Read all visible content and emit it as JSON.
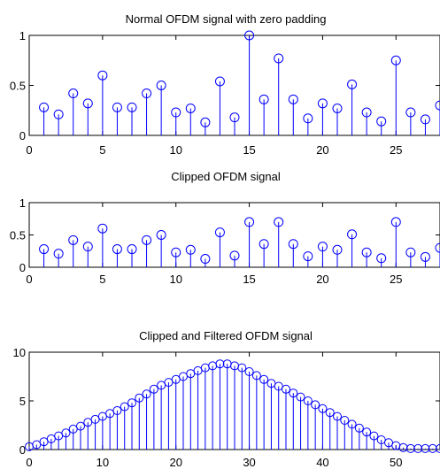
{
  "chart_data": [
    {
      "type": "stem",
      "title": "Normal OFDM signal with zero padding",
      "xlim": [
        0,
        28
      ],
      "ylim": [
        0,
        1
      ],
      "xticks": [
        0,
        5,
        10,
        15,
        20,
        25
      ],
      "yticks": [
        0,
        0.5,
        1
      ],
      "xticklabels": [
        "0",
        "5",
        "10",
        "15",
        "20",
        "25"
      ],
      "yticklabels": [
        "0",
        "0.5",
        "1"
      ],
      "x": [
        1,
        2,
        3,
        4,
        5,
        6,
        7,
        8,
        9,
        10,
        11,
        12,
        13,
        14,
        15,
        16,
        17,
        18,
        19,
        20,
        21,
        22,
        23,
        24,
        25,
        26,
        27,
        28
      ],
      "values": [
        0.28,
        0.21,
        0.42,
        0.32,
        0.6,
        0.28,
        0.28,
        0.42,
        0.5,
        0.23,
        0.27,
        0.13,
        0.54,
        0.18,
        1.0,
        0.36,
        0.77,
        0.36,
        0.17,
        0.32,
        0.27,
        0.51,
        0.23,
        0.14,
        0.75,
        0.23,
        0.16,
        0.3
      ],
      "color": "#0000ff"
    },
    {
      "type": "stem",
      "title": "Clipped OFDM signal",
      "xlim": [
        0,
        28
      ],
      "ylim": [
        0,
        1
      ],
      "xticks": [
        0,
        5,
        10,
        15,
        20,
        25
      ],
      "yticks": [
        0,
        0.5,
        1
      ],
      "xticklabels": [
        "0",
        "5",
        "10",
        "15",
        "20",
        "25"
      ],
      "yticklabels": [
        "0",
        "0.5",
        "1"
      ],
      "x": [
        1,
        2,
        3,
        4,
        5,
        6,
        7,
        8,
        9,
        10,
        11,
        12,
        13,
        14,
        15,
        16,
        17,
        18,
        19,
        20,
        21,
        22,
        23,
        24,
        25,
        26,
        27,
        28
      ],
      "values": [
        0.28,
        0.21,
        0.42,
        0.32,
        0.6,
        0.28,
        0.28,
        0.42,
        0.5,
        0.23,
        0.27,
        0.13,
        0.54,
        0.18,
        0.7,
        0.36,
        0.7,
        0.36,
        0.17,
        0.32,
        0.27,
        0.51,
        0.23,
        0.14,
        0.7,
        0.23,
        0.16,
        0.3
      ],
      "color": "#0000ff"
    },
    {
      "type": "stem",
      "title": "Clipped and Filtered OFDM signal",
      "xlim": [
        0,
        56
      ],
      "ylim": [
        0,
        10
      ],
      "xticks": [
        0,
        10,
        20,
        30,
        40,
        50
      ],
      "yticks": [
        0,
        5,
        10
      ],
      "xticklabels": [
        "0",
        "10",
        "20",
        "30",
        "40",
        "50"
      ],
      "yticklabels": [
        "0",
        "5",
        "10"
      ],
      "x": [
        0,
        1,
        2,
        3,
        4,
        5,
        6,
        7,
        8,
        9,
        10,
        11,
        12,
        13,
        14,
        15,
        16,
        17,
        18,
        19,
        20,
        21,
        22,
        23,
        24,
        25,
        26,
        27,
        28,
        29,
        30,
        31,
        32,
        33,
        34,
        35,
        36,
        37,
        38,
        39,
        40,
        41,
        42,
        43,
        44,
        45,
        46,
        47,
        48,
        49,
        50,
        51,
        52,
        53,
        54,
        55,
        56
      ],
      "values": [
        0.3,
        0.5,
        0.8,
        1.1,
        1.4,
        1.7,
        2.1,
        2.4,
        2.8,
        3.1,
        3.4,
        3.7,
        4.0,
        4.4,
        4.8,
        5.3,
        5.7,
        6.2,
        6.6,
        6.9,
        7.2,
        7.5,
        7.8,
        8.1,
        8.4,
        8.6,
        8.8,
        8.8,
        8.6,
        8.4,
        8.0,
        7.6,
        7.2,
        6.8,
        6.5,
        6.2,
        5.8,
        5.4,
        5.0,
        4.6,
        4.2,
        3.8,
        3.4,
        3.0,
        2.6,
        2.2,
        1.8,
        1.4,
        1.0,
        0.7,
        0.4,
        0.2,
        0.1,
        0.1,
        0.1,
        0.1,
        0.1
      ],
      "color": "#0000ff"
    }
  ]
}
